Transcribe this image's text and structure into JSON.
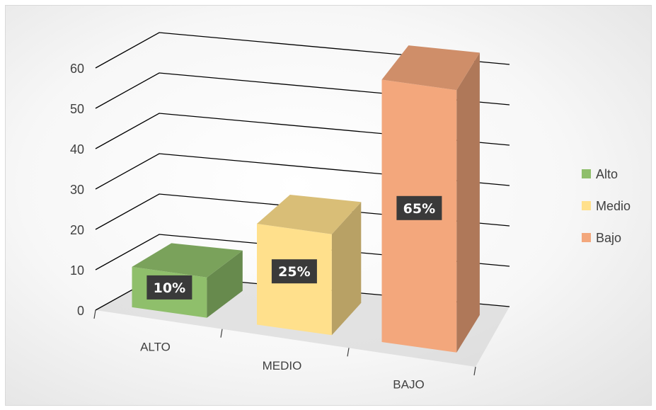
{
  "chart_data": {
    "type": "bar",
    "title": "",
    "xlabel": "",
    "ylabel": "",
    "categories": [
      "ALTO",
      "MEDIO",
      "BAJO"
    ],
    "ylim": [
      0,
      60
    ],
    "yticks": [
      0,
      10,
      20,
      30,
      40,
      50,
      60
    ],
    "grid": true,
    "legend_position": "right",
    "series": [
      {
        "name": "Alto",
        "color": "#8fbf6b",
        "values": [
          10,
          null,
          null
        ],
        "label": "10%"
      },
      {
        "name": "Medio",
        "color": "#ffe08c",
        "values": [
          null,
          25,
          null
        ],
        "label": "25%"
      },
      {
        "name": "Bajo",
        "color": "#f3a77c",
        "values": [
          null,
          null,
          65
        ],
        "label": "65%"
      }
    ]
  }
}
